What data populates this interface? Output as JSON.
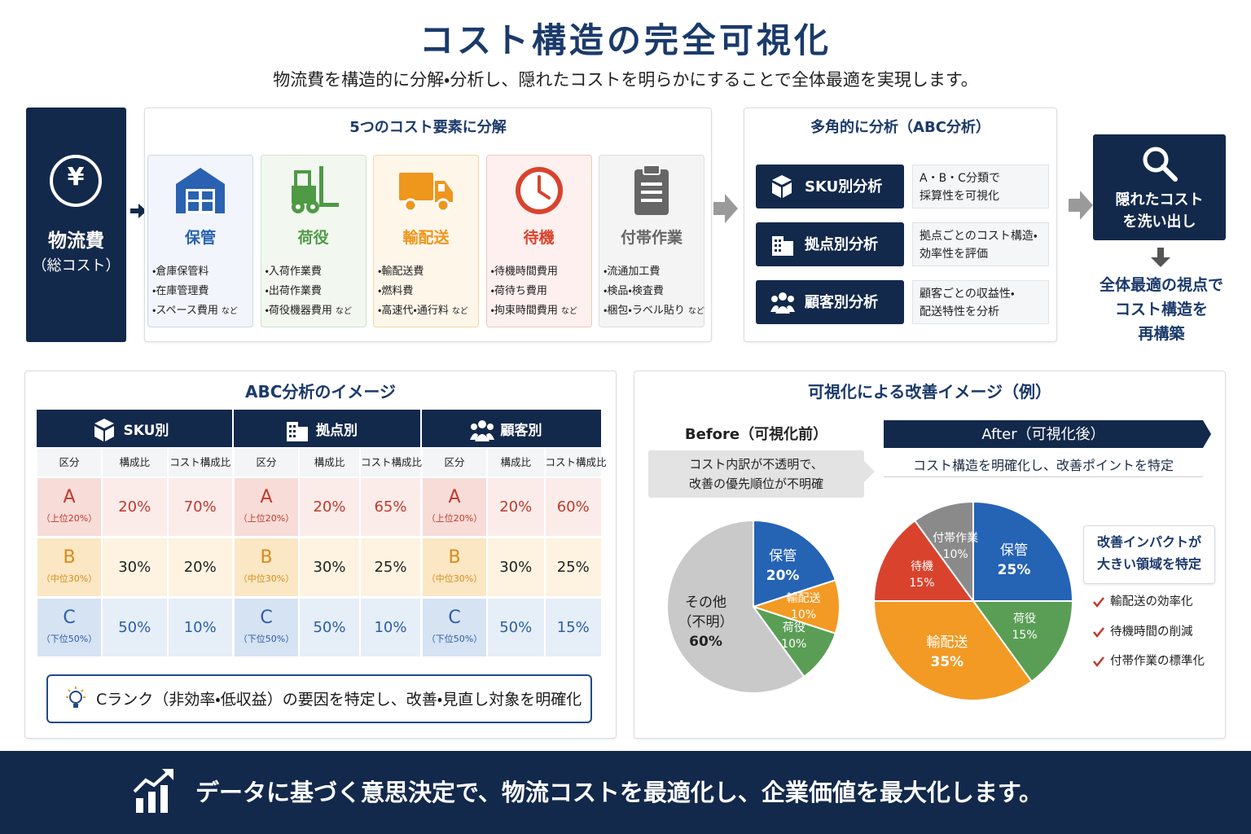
{
  "header": {
    "title": "コスト構造の完全可視化",
    "subtitle": "物流費を構造的に分解・分析し、隠れたコストを明らかにすることで全体最適を実現します。"
  },
  "total": {
    "icon": "¥",
    "label": "物流費",
    "sublabel": "（総コスト）"
  },
  "breakdown": {
    "title": "5つのコスト要素に分解",
    "items": [
      {
        "name": "保管",
        "color": "#2a62b1",
        "details": [
          "・倉庫保管料",
          "・在庫管理費",
          "・スペース費用"
        ],
        "note": "など"
      },
      {
        "name": "荷役",
        "color": "#4f9a45",
        "details": [
          "・入荷作業費",
          "・出荷作業費",
          "・荷役機器費用"
        ],
        "note": "など"
      },
      {
        "name": "輸配送",
        "color": "#ef961c",
        "details": [
          "・輸配送費",
          "・燃料費",
          "・高速代・通行料"
        ],
        "note": "など"
      },
      {
        "name": "待機",
        "color": "#d9432d",
        "details": [
          "・待機時間費用",
          "・荷待ち費用",
          "・拘束時間費用"
        ],
        "note": "など"
      },
      {
        "name": "付帯作業",
        "color": "#666666",
        "details": [
          "・流通加工費",
          "・検品・検査費",
          "・梱包・ラベル貼り"
        ],
        "note": "など"
      }
    ]
  },
  "analysis": {
    "title": "多角的に分析（ABC分析）",
    "items": [
      {
        "label": "SKU別分析",
        "desc": "A・B・C分類で\n採算性を可視化"
      },
      {
        "label": "拠点別分析",
        "desc": "拠点ごとのコスト構造・\n効率性を評価"
      },
      {
        "label": "顧客別分析",
        "desc": "顧客ごとの収益性・\n配送特性を分析"
      }
    ]
  },
  "result": {
    "box": "隠れたコスト\nを洗い出し",
    "conclusion": "全体最適の視点で\nコスト構造を\n再構築"
  },
  "abc": {
    "title": "ABC分析のイメージ",
    "groups": [
      "SKU別",
      "拠点別",
      "顧客別"
    ],
    "columns": [
      "区分",
      "構成比",
      "コスト構成比"
    ],
    "rows": [
      {
        "rank": "A",
        "sub": "（上位20%）",
        "cells": [
          "20%",
          "70%",
          "20%",
          "65%",
          "20%",
          "60%"
        ]
      },
      {
        "rank": "B",
        "sub": "（中位30%）",
        "cells": [
          "30%",
          "20%",
          "30%",
          "25%",
          "30%",
          "25%"
        ]
      },
      {
        "rank": "C",
        "sub": "（下位50%）",
        "cells": [
          "50%",
          "10%",
          "50%",
          "10%",
          "50%",
          "15%"
        ]
      }
    ],
    "note": "Cランク（非効率・低収益）の要因を特定し、改善・見直し対象を明確化"
  },
  "improvement": {
    "title": "可視化による改善イメージ（例）",
    "before_desc": "コスト内訳が不透明で、\n改善の優先順位が不明確",
    "after_desc": "コスト構造を明確化し、改善ポイントを特定",
    "callout": {
      "title": "改善インパクトが\n大きい領域を特定",
      "items": [
        "輸配送の効率化",
        "待機時間の削減",
        "付帯作業の標準化"
      ]
    }
  },
  "chart_data": [
    {
      "type": "pie",
      "title": "Before（可視化前）",
      "categories": [
        "保管",
        "輸配送",
        "荷役",
        "その他\n（不明）"
      ],
      "values": [
        20,
        10,
        10,
        60
      ],
      "value_labels": [
        "20%",
        "10%",
        "10%",
        "60%"
      ],
      "colors": [
        "#2563b5",
        "#f29a24",
        "#5a9e55",
        "#c9c9c9"
      ]
    },
    {
      "type": "pie",
      "title": "After（可視化後）",
      "categories": [
        "保管",
        "荷役",
        "輸配送",
        "待機",
        "付帯作業"
      ],
      "values": [
        25,
        15,
        35,
        15,
        10
      ],
      "value_labels": [
        "25%",
        "15%",
        "35%",
        "15%",
        "10%"
      ],
      "colors": [
        "#2563b5",
        "#5a9e55",
        "#f29a24",
        "#d9432d",
        "#8a8a8a"
      ]
    }
  ],
  "footer": {
    "text": "データに基づく意思決定で、物流コストを最適化し、企業価値を最大化します。"
  }
}
